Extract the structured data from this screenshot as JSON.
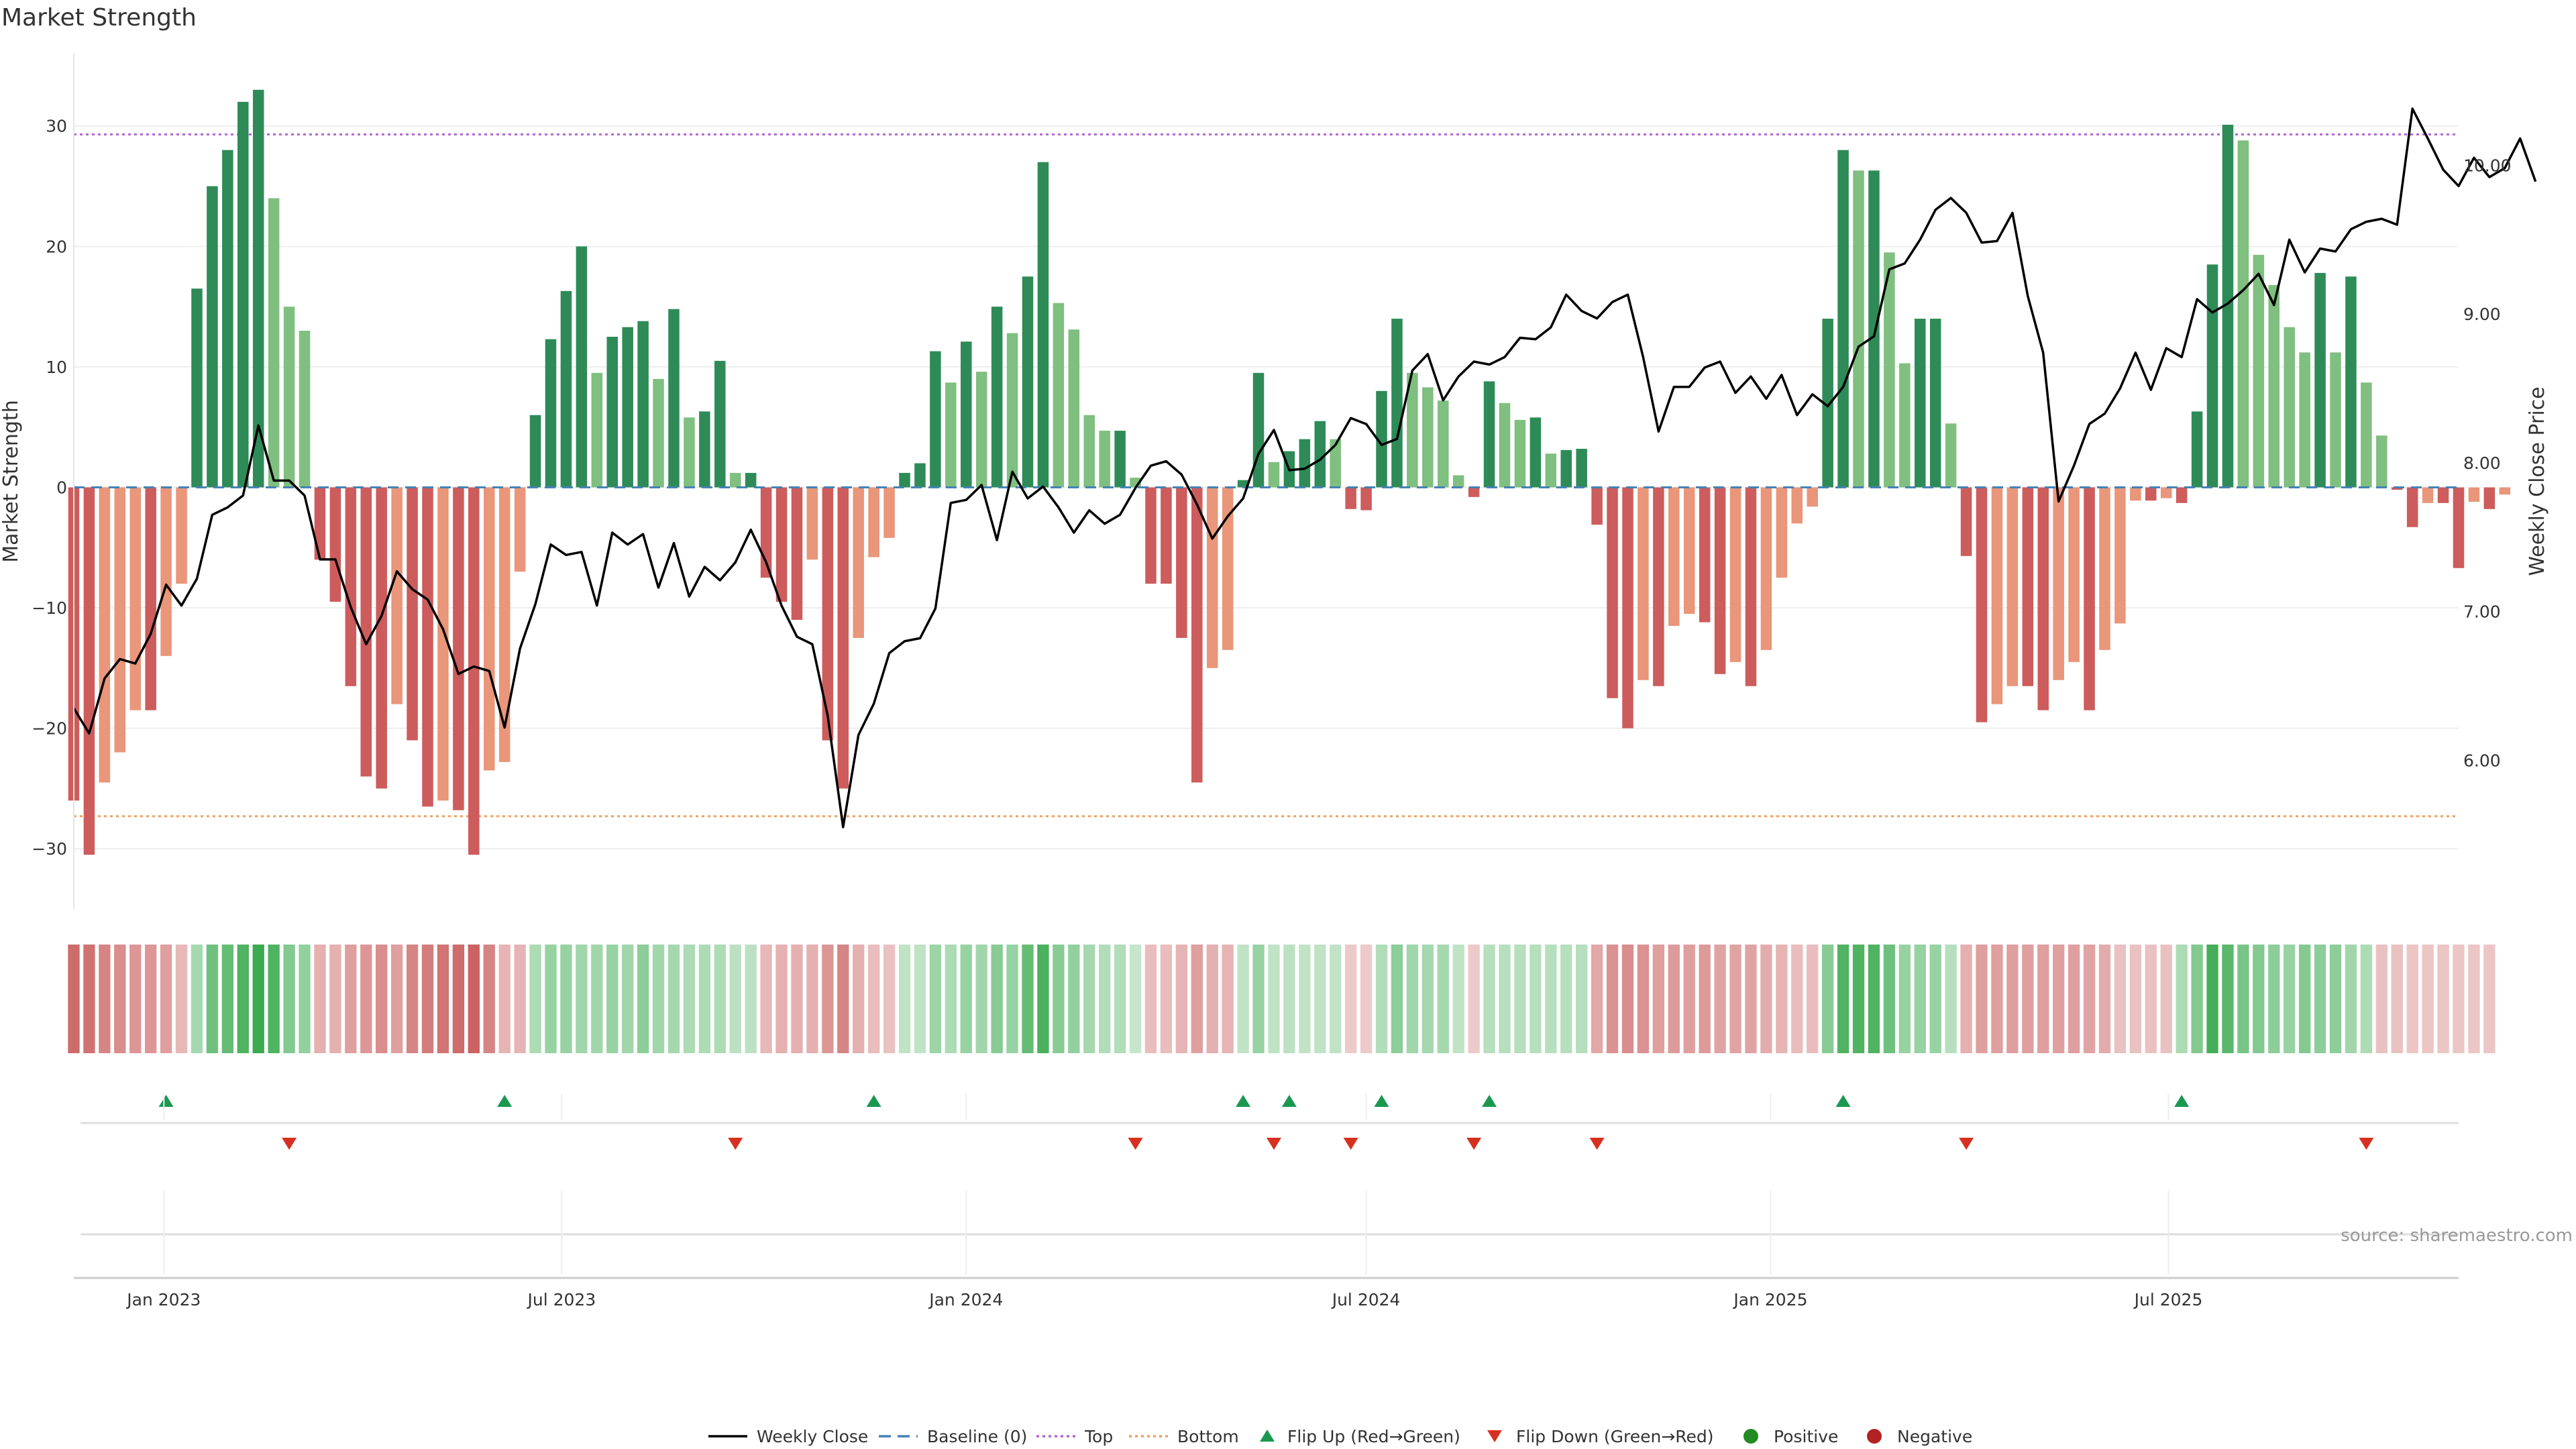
{
  "title": "Market Strength",
  "source": "source: sharemaestro.com",
  "colors": {
    "pos_strong": "#2e8b57",
    "pos_weak": "#7fbf7f",
    "neg_strong": "#cd5c5c",
    "neg_weak": "#e9967a",
    "price_line": "#000000",
    "baseline": "#4682b4",
    "top": "#b266d1",
    "bottom": "#f0a060",
    "flip_up": "#1a9850",
    "flip_down": "#d7301f",
    "positive": "#228b22",
    "negative": "#b22222"
  },
  "chart_data": {
    "type": "bar",
    "title": "Market Strength",
    "ylabel": "Market Strength",
    "y2label": "Weekly Close Price",
    "ylim": [
      -35,
      36
    ],
    "y2lim": [
      5.0,
      10.75
    ],
    "yticks": [
      30,
      20,
      10,
      0,
      -10,
      -20,
      -30
    ],
    "yticklabels": [
      "30",
      "20",
      "10",
      "0",
      "−10",
      "−20",
      "−30"
    ],
    "y2ticks": [
      6.0,
      7.0,
      8.0,
      9.0,
      10.0
    ],
    "y2ticklabels": [
      "6.00",
      "7.00",
      "8.00",
      "9.00",
      "10.00"
    ],
    "xlim": [
      "2022-11-21",
      "2025-11-10"
    ],
    "xticks": [
      "2023-01-01",
      "2023-07-01",
      "2024-01-01",
      "2024-07-01",
      "2025-01-01",
      "2025-07-01"
    ],
    "xticklabels": [
      "Jan 2023",
      "Jul 2023",
      "Jan 2024",
      "Jul 2024",
      "Jan 2025",
      "Jul 2025"
    ],
    "start_date": "2022-11-21",
    "top": 29.3,
    "bottom": -27.3,
    "strength": [
      -26,
      -30.5,
      -24.5,
      -22,
      -18.5,
      -18.5,
      -14,
      -8,
      16.5,
      25,
      28,
      32,
      33,
      24,
      15,
      13,
      -6,
      -9.5,
      -16.5,
      -24,
      -25,
      -18,
      -21,
      -26.5,
      -26,
      -26.8,
      -30.5,
      -23.5,
      -22.8,
      -7,
      6,
      12.3,
      16.3,
      20,
      9.5,
      12.5,
      13.3,
      13.8,
      9,
      14.8,
      5.8,
      6.3,
      10.5,
      1.2,
      1.2,
      -7.5,
      -9.5,
      -11,
      -6,
      -21,
      -25,
      -12.5,
      -5.8,
      -4.2,
      1.2,
      2,
      11.3,
      8.7,
      12.1,
      9.6,
      15,
      12.8,
      17.5,
      27,
      15.3,
      13.1,
      6,
      4.7,
      4.7,
      0.8,
      -8,
      -8,
      -12.5,
      -24.5,
      -15,
      -13.5,
      0.6,
      9.5,
      2.1,
      3,
      4,
      5.5,
      4,
      -1.8,
      -1.9,
      8,
      14,
      9.5,
      8.3,
      7.2,
      1,
      -0.8,
      8.8,
      7,
      5.6,
      5.8,
      2.8,
      3.1,
      3.2,
      -3.1,
      -17.5,
      -20,
      -16,
      -16.5,
      -11.5,
      -10.5,
      -11.2,
      -15.5,
      -14.5,
      -16.5,
      -13.5,
      -7.5,
      -3,
      -1.6,
      14,
      28,
      26.3,
      26.3,
      19.5,
      10.3,
      14,
      14,
      5.3,
      -5.7,
      -19.5,
      -18,
      -16.5,
      -16.5,
      -18.5,
      -16,
      -14.5,
      -18.5,
      -13.5,
      -11.3,
      -1.1,
      -1.1,
      -0.9,
      -1.3,
      6.3,
      18.5,
      30.1,
      28.8,
      19.3,
      16.8,
      13.3,
      11.2,
      17.8,
      11.2,
      17.5,
      8.7,
      4.3,
      -0.2,
      -3.3,
      -1.3,
      -1.3,
      -6.7,
      -1.2,
      -1.8,
      -0.6
    ],
    "close": [
      6.35,
      6.18,
      6.55,
      6.68,
      6.65,
      6.85,
      7.18,
      7.04,
      7.22,
      7.65,
      7.7,
      7.78,
      8.25,
      7.88,
      7.88,
      7.78,
      7.35,
      7.35,
      7.03,
      6.78,
      6.97,
      7.27,
      7.15,
      7.08,
      6.88,
      6.58,
      6.63,
      6.6,
      6.22,
      6.75,
      7.05,
      7.45,
      7.38,
      7.4,
      7.04,
      7.53,
      7.45,
      7.52,
      7.16,
      7.46,
      7.1,
      7.3,
      7.21,
      7.33,
      7.55,
      7.33,
      7.04,
      6.83,
      6.78,
      6.3,
      5.55,
      6.17,
      6.38,
      6.72,
      6.8,
      6.82,
      7.02,
      7.73,
      7.75,
      7.85,
      7.48,
      7.94,
      7.76,
      7.84,
      7.7,
      7.53,
      7.68,
      7.59,
      7.65,
      7.83,
      7.98,
      8.01,
      7.92,
      7.72,
      7.49,
      7.64,
      7.76,
      8.06,
      8.22,
      7.95,
      7.96,
      8.02,
      8.12,
      8.3,
      8.26,
      8.12,
      8.16,
      8.62,
      8.73,
      8.42,
      8.58,
      8.68,
      8.66,
      8.71,
      8.84,
      8.83,
      8.91,
      9.13,
      9.02,
      8.97,
      9.08,
      9.13,
      8.71,
      8.21,
      8.51,
      8.51,
      8.64,
      8.68,
      8.47,
      8.58,
      8.43,
      8.59,
      8.32,
      8.46,
      8.38,
      8.51,
      8.78,
      8.85,
      9.3,
      9.34,
      9.5,
      9.7,
      9.78,
      9.68,
      9.48,
      9.49,
      9.68,
      9.12,
      8.74,
      7.74,
      7.98,
      8.26,
      8.33,
      8.5,
      8.74,
      8.49,
      8.77,
      8.71,
      9.1,
      9.01,
      9.07,
      9.16,
      9.27,
      9.06,
      9.5,
      9.28,
      9.44,
      9.42,
      9.57,
      9.62,
      9.64,
      9.6,
      10.38,
      10.18,
      9.97,
      9.86,
      10.05,
      9.92,
      9.98,
      10.18,
      9.89
    ],
    "heat_strength": [
      -26,
      -24.5,
      -20,
      -18,
      -16,
      -16,
      -14,
      -8,
      9,
      20,
      22,
      26,
      32,
      26,
      16,
      13,
      -10,
      -10,
      -14,
      -16,
      -18,
      -14,
      -20,
      -22,
      -24,
      -26,
      -28,
      -20,
      -9,
      -9,
      8,
      12,
      12,
      10,
      10,
      12,
      10,
      14,
      10,
      9,
      8,
      8,
      8,
      5,
      5,
      -8,
      -10,
      -10,
      -10,
      -16,
      -20,
      -10,
      -7,
      -6,
      4,
      4,
      11,
      8,
      12,
      10,
      15,
      12,
      22,
      27,
      15,
      13,
      9,
      7,
      7,
      3,
      -7,
      -7,
      -9,
      -14,
      -10,
      -9,
      4,
      12,
      4,
      5,
      4,
      4,
      4,
      -4,
      -4,
      7,
      14,
      10,
      9,
      9,
      4,
      -4,
      6,
      6,
      6,
      6,
      6,
      6,
      6,
      -12,
      -17,
      -18,
      -17,
      -14,
      -15,
      -14,
      -15,
      -13,
      -13,
      -13,
      -11,
      -9,
      -7,
      -7,
      15,
      26,
      26,
      26,
      20,
      12,
      12,
      12,
      6,
      -10,
      -14,
      -14,
      -14,
      -14,
      -14,
      -14,
      -14,
      -13,
      -11,
      -6,
      -6,
      -6,
      -6,
      8,
      16,
      28,
      24,
      18,
      16,
      14,
      12,
      16,
      14,
      14,
      10,
      8,
      -6,
      -6,
      -5,
      -5,
      -5,
      -5,
      -5,
      -5
    ],
    "flip_up_weeks": [
      6,
      28,
      52,
      76,
      79,
      85,
      92,
      115,
      137
    ],
    "flip_down_weeks": [
      14,
      43,
      69,
      78,
      83,
      91,
      99,
      123,
      149
    ],
    "legend": [
      "Weekly Close",
      "Baseline (0)",
      "Top",
      "Bottom",
      "Flip Up (Red→Green)",
      "Flip Down (Green→Red)",
      "Positive",
      "Negative"
    ],
    "legend_loc": "bottom-center",
    "grid": true
  }
}
